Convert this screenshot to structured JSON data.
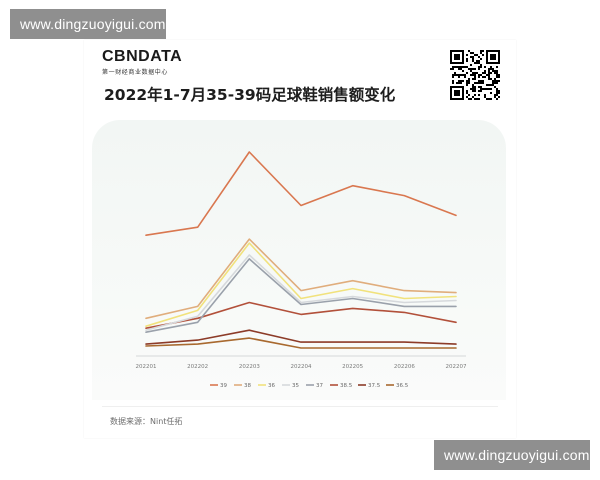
{
  "watermark": {
    "top": "www.dingzuoyigui.com",
    "bottom": "www.dingzuoyigui.com"
  },
  "logo": {
    "text": "CBNDATA",
    "subtitle": "第一财经商业数据中心"
  },
  "title": "2022年1-7月35-39码足球鞋销售额变化",
  "source": "数据来源：Nint任拓",
  "qr_icon": "qr-code-icon",
  "chart_data": {
    "type": "line",
    "categories": [
      "202201",
      "202202",
      "202203",
      "202204",
      "202205",
      "202206",
      "202207"
    ],
    "grid": false,
    "legend_position": "bottom",
    "series": [
      {
        "name": "39",
        "color": "#d9774f",
        "values": [
          58,
          62,
          100,
          73,
          83,
          78,
          68
        ]
      },
      {
        "name": "38",
        "color": "#e0ad7c",
        "values": [
          16,
          22,
          56,
          30,
          35,
          30,
          29
        ]
      },
      {
        "name": "36",
        "color": "#f1e27c",
        "values": [
          12,
          20,
          54,
          26,
          31,
          26,
          27
        ]
      },
      {
        "name": "35",
        "color": "#d6d9dc",
        "values": [
          10,
          17,
          48,
          24,
          27,
          24,
          25
        ]
      },
      {
        "name": "37",
        "color": "#9aa1ab",
        "values": [
          9,
          14,
          46,
          23,
          26,
          22,
          22
        ]
      },
      {
        "name": "38.5",
        "color": "#b2503a",
        "values": [
          11,
          16,
          24,
          18,
          21,
          19,
          14
        ]
      },
      {
        "name": "37.5",
        "color": "#8c3b28",
        "values": [
          3,
          5,
          10,
          4,
          4,
          4,
          3
        ]
      },
      {
        "name": "36.5",
        "color": "#a8692f",
        "values": [
          2,
          3,
          6,
          1,
          1,
          1,
          1
        ]
      }
    ]
  }
}
